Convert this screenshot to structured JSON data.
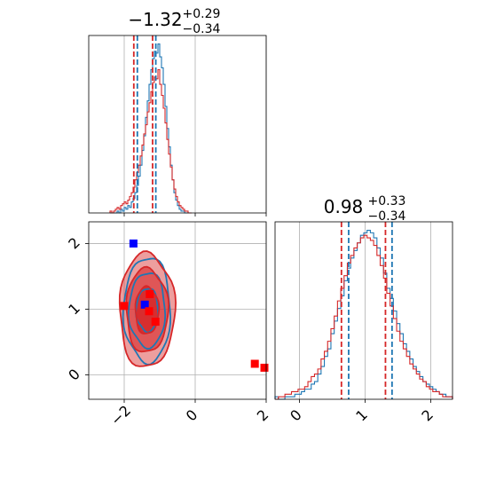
{
  "colors": {
    "series_a": "#1f77b4",
    "series_b": "#d62728",
    "series_b_fill": "#e46767",
    "grid": "#b0b0b0",
    "frame": "#000000"
  },
  "chart_data": [
    {
      "type": "histogram",
      "panel": "param-1-marginal",
      "title": {
        "value": "−1.32",
        "plus": "+0.29",
        "minus": "−0.34"
      },
      "xlim": [
        -3.0,
        2.0
      ],
      "grid": true,
      "x_ticks": [
        -2,
        0,
        2
      ],
      "quantile_lines": {
        "series_a": [
          -1.63,
          -1.11
        ],
        "series_b": [
          -1.73,
          -1.2
        ]
      },
      "series": [
        {
          "color_key": "series_a",
          "bin_start": -2.4,
          "bin_width": 0.05,
          "counts": [
            0,
            0,
            0,
            0,
            1,
            0,
            2,
            1,
            3,
            2,
            4,
            3,
            6,
            8,
            11,
            15,
            20,
            26,
            34,
            42,
            52,
            61,
            70,
            78,
            84,
            88,
            87,
            92,
            85,
            79,
            70,
            58,
            46,
            36,
            26,
            18,
            11,
            7,
            4,
            2,
            1,
            1,
            0,
            0,
            0,
            0
          ]
        },
        {
          "color_key": "series_b",
          "bin_start": -2.4,
          "bin_width": 0.05,
          "counts": [
            1,
            0,
            1,
            2,
            3,
            2,
            4,
            5,
            6,
            5,
            7,
            9,
            11,
            14,
            18,
            22,
            26,
            31,
            37,
            43,
            48,
            55,
            60,
            66,
            71,
            74,
            73,
            78,
            70,
            64,
            57,
            49,
            40,
            32,
            25,
            18,
            13,
            9,
            6,
            4,
            3,
            2,
            1,
            1,
            0,
            0
          ]
        }
      ]
    },
    {
      "type": "contour",
      "panel": "joint",
      "xlim": [
        -3.0,
        2.0
      ],
      "ylim": [
        -0.37,
        2.33
      ],
      "grid": true,
      "x_ticks": [
        -2,
        0,
        2
      ],
      "y_ticks": [
        0,
        1,
        2
      ],
      "series": [
        {
          "color_key": "series_a",
          "center": [
            -1.35,
            0.99
          ],
          "levels_x": [
            0.31,
            0.51,
            0.66
          ],
          "levels_y": [
            0.33,
            0.57,
            0.8
          ]
        },
        {
          "color_key": "series_b",
          "center": [
            -1.36,
            0.98
          ],
          "levels_x": [
            0.33,
            0.59,
            0.78
          ],
          "levels_y": [
            0.36,
            0.64,
            0.87
          ]
        }
      ],
      "markers": [
        {
          "color_key": "series_a",
          "x": -1.42,
          "y": 1.07
        },
        {
          "color_key": "series_a",
          "x": -1.74,
          "y": 2.0
        },
        {
          "color_key": "series_b",
          "x": -2.0,
          "y": 1.05
        },
        {
          "color_key": "series_b",
          "x": -1.28,
          "y": 1.23
        },
        {
          "color_key": "series_b",
          "x": -1.3,
          "y": 0.97
        },
        {
          "color_key": "series_b",
          "x": -1.12,
          "y": 0.81
        },
        {
          "color_key": "series_b",
          "x": 1.68,
          "y": 0.17
        },
        {
          "color_key": "series_b",
          "x": 1.95,
          "y": 0.11
        }
      ]
    },
    {
      "type": "histogram",
      "panel": "param-2-marginal",
      "title": {
        "value": "0.98",
        "plus": "+0.33",
        "minus": "−0.34"
      },
      "xlim": [
        -0.37,
        2.33
      ],
      "grid": true,
      "x_ticks": [
        0,
        1,
        2
      ],
      "quantile_lines": {
        "series_a": [
          0.75,
          1.41
        ],
        "series_b": [
          0.64,
          1.31
        ]
      },
      "series": [
        {
          "color_key": "series_a",
          "bin_start": -0.37,
          "bin_width": 0.05,
          "counts": [
            1,
            0,
            0,
            1,
            1,
            1,
            2,
            2,
            3,
            4,
            4,
            6,
            7,
            10,
            13,
            17,
            20,
            26,
            31,
            36,
            41,
            47,
            52,
            56,
            59,
            62,
            65,
            66,
            67,
            66,
            64,
            60,
            56,
            50,
            44,
            40,
            35,
            30,
            26,
            22,
            19,
            16,
            13,
            11,
            9,
            7,
            6,
            5,
            4,
            3,
            2,
            2,
            1,
            1
          ]
        },
        {
          "color_key": "series_b",
          "bin_start": -0.37,
          "bin_width": 0.05,
          "counts": [
            0,
            1,
            1,
            2,
            2,
            3,
            3,
            4,
            4,
            5,
            7,
            9,
            10,
            12,
            16,
            19,
            23,
            28,
            33,
            39,
            44,
            49,
            54,
            57,
            60,
            62,
            64,
            65,
            64,
            63,
            61,
            57,
            53,
            48,
            42,
            37,
            32,
            27,
            23,
            20,
            17,
            14,
            12,
            10,
            8,
            7,
            5,
            4,
            3,
            3,
            2,
            1,
            1,
            1
          ]
        }
      ]
    }
  ]
}
